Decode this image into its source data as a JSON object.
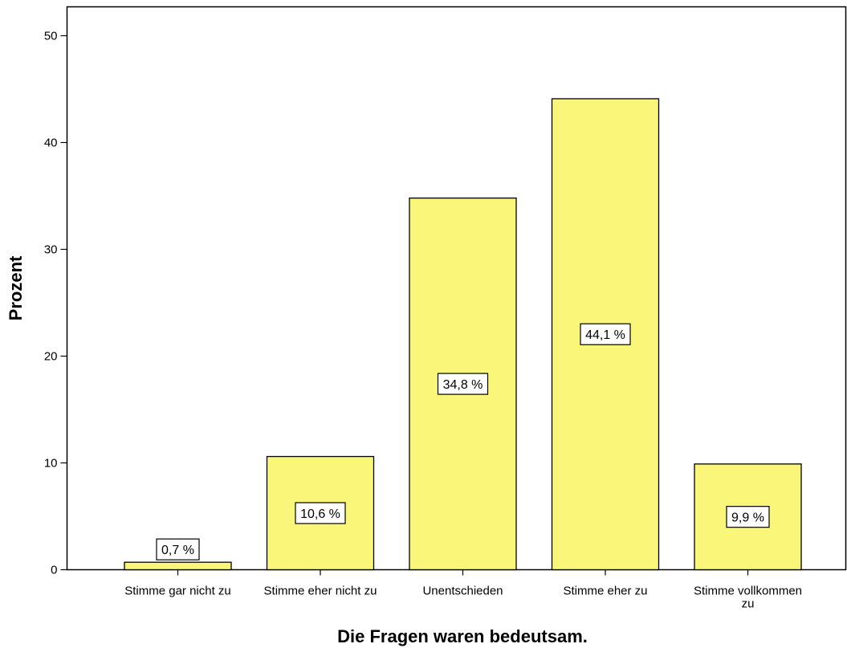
{
  "chart_data": {
    "type": "bar",
    "categories": [
      [
        "Stimme gar nicht zu"
      ],
      [
        "Stimme eher nicht zu"
      ],
      [
        "Unentschieden"
      ],
      [
        "Stimme eher zu"
      ],
      [
        "Stimme vollkommen",
        "zu"
      ]
    ],
    "values": [
      0.7,
      10.6,
      34.8,
      44.1,
      9.9
    ],
    "data_labels": [
      "0,7 %",
      "10,6 %",
      "34,8 %",
      "44,1 %",
      "9,9 %"
    ],
    "xlabel": "Die Fragen waren bedeutsam.",
    "ylabel": "Prozent",
    "ylim": [
      0,
      52.5
    ],
    "yticks": [
      0,
      10,
      20,
      30,
      40,
      50
    ],
    "bar_color": "#f9f67a",
    "bar_border_color": "#000000",
    "grid": false,
    "legend": "none"
  }
}
